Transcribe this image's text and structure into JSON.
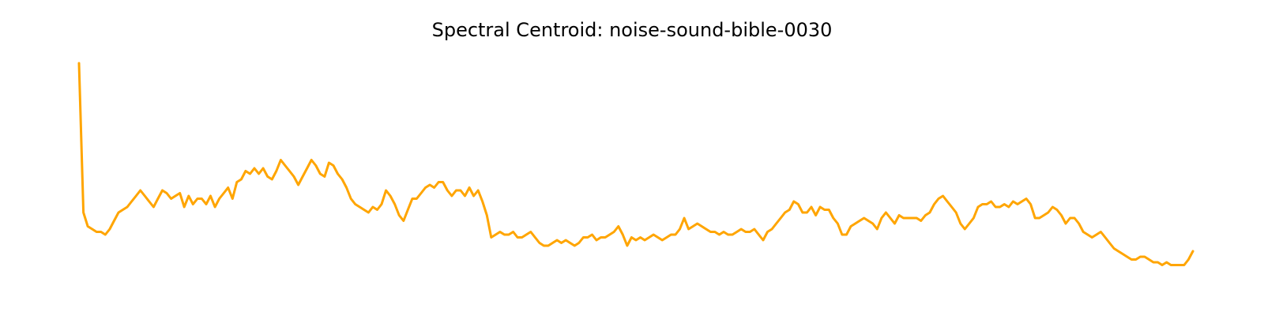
{
  "chart_data": {
    "type": "line",
    "title": "Spectral Centroid: noise-sound-bible-0030",
    "xlabel": "",
    "ylabel": "",
    "axes_visible": false,
    "grid": false,
    "series": [
      {
        "color": "#ffa500",
        "values": [
          100,
          46,
          41,
          40,
          39,
          39,
          38,
          40,
          43,
          46,
          47,
          48,
          50,
          52,
          54,
          52,
          50,
          48,
          51,
          54,
          53,
          51,
          52,
          53,
          48,
          52,
          49,
          51,
          51,
          49,
          52,
          48,
          51,
          53,
          55,
          51,
          57,
          58,
          61,
          60,
          62,
          60,
          62,
          59,
          58,
          61,
          65,
          63,
          61,
          59,
          56,
          59,
          62,
          65,
          63,
          60,
          59,
          64,
          63,
          60,
          58,
          55,
          51,
          49,
          48,
          47,
          46,
          48,
          47,
          49,
          54,
          52,
          49,
          45,
          43,
          47,
          51,
          51,
          53,
          55,
          56,
          55,
          57,
          57,
          54,
          52,
          54,
          54,
          52,
          55,
          52,
          54,
          50,
          45,
          37,
          38,
          39,
          38,
          38,
          39,
          37,
          37,
          38,
          39,
          37,
          35,
          34,
          34,
          35,
          36,
          35,
          36,
          35,
          34,
          35,
          37,
          37,
          38,
          36,
          37,
          37,
          38,
          39,
          41,
          38,
          34,
          37,
          36,
          37,
          36,
          37,
          38,
          37,
          36,
          37,
          38,
          38,
          40,
          44,
          40,
          41,
          42,
          41,
          40,
          39,
          39,
          38,
          39,
          38,
          38,
          39,
          40,
          39,
          39,
          40,
          38,
          36,
          39,
          40,
          42,
          44,
          46,
          47,
          50,
          49,
          46,
          46,
          48,
          45,
          48,
          47,
          47,
          44,
          42,
          38,
          38,
          41,
          42,
          43,
          44,
          43,
          42,
          40,
          44,
          46,
          44,
          42,
          45,
          44,
          44,
          44,
          44,
          43,
          45,
          46,
          49,
          51,
          52,
          50,
          48,
          46,
          42,
          40,
          42,
          44,
          48,
          49,
          49,
          50,
          48,
          48,
          49,
          48,
          50,
          49,
          50,
          51,
          49,
          44,
          44,
          45,
          46,
          48,
          47,
          45,
          42,
          44,
          44,
          42,
          39,
          38,
          37,
          38,
          39,
          37,
          35,
          33,
          32,
          31,
          30,
          29,
          29,
          30,
          30,
          29,
          28,
          28,
          27,
          28,
          27,
          27,
          27,
          27,
          29,
          32
        ]
      }
    ]
  }
}
